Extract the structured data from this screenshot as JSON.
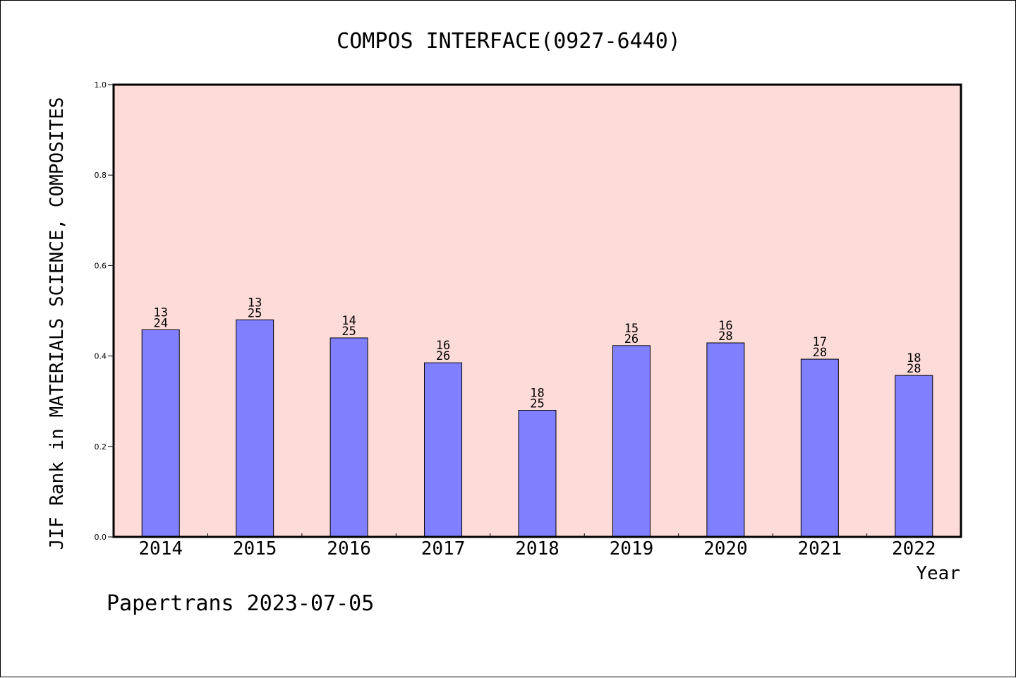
{
  "chart_data": {
    "type": "bar",
    "title": "COMPOS INTERFACE(0927-6440)",
    "xlabel": "Year",
    "ylabel": "JIF Rank in MATERIALS SCIENCE, COMPOSITES",
    "ylim": [
      0,
      1.0
    ],
    "yticks": [
      "0.0",
      "0.2",
      "0.4",
      "0.6",
      "0.8",
      "1.0"
    ],
    "categories": [
      "2014",
      "2015",
      "2016",
      "2017",
      "2018",
      "2019",
      "2020",
      "2021",
      "2022"
    ],
    "values": [
      0.458,
      0.48,
      0.44,
      0.385,
      0.28,
      0.423,
      0.429,
      0.393,
      0.357
    ],
    "labels_top": [
      "13",
      "13",
      "14",
      "16",
      "18",
      "15",
      "16",
      "17",
      "18"
    ],
    "labels_bottom": [
      "24",
      "25",
      "25",
      "26",
      "25",
      "26",
      "28",
      "28",
      "28"
    ],
    "grid": false,
    "colors": {
      "plot_background": "#fddbd8",
      "bar_fill": "#8080ff",
      "bar_stroke": "#000000"
    }
  },
  "footer": {
    "text": "Papertrans 2023-07-05"
  }
}
